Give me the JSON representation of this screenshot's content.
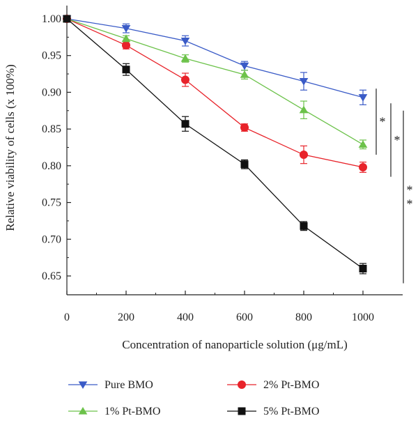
{
  "chart_data": {
    "type": "line",
    "xlabel": "Concentration of nanoparticle solution (μg/mL)",
    "ylabel": "Relative viability of cells (x 100%)",
    "x": [
      0,
      200,
      400,
      600,
      800,
      1000
    ],
    "xlim": [
      0,
      1000
    ],
    "ylim": [
      0.625,
      1.0
    ],
    "xticks": [
      "0",
      "200",
      "400",
      "600",
      "800",
      "1000"
    ],
    "yticks": [
      "0.65",
      "0.70",
      "0.75",
      "0.80",
      "0.85",
      "0.90",
      "0.95",
      "1.00"
    ],
    "grid": false,
    "legend_position": "bottom",
    "series": [
      {
        "name": "Pure BMO",
        "color": "#3a5bc7",
        "marker": "triangle-down",
        "values": [
          1.0,
          0.987,
          0.97,
          0.936,
          0.915,
          0.893
        ],
        "errors": [
          0.002,
          0.006,
          0.007,
          0.006,
          0.012,
          0.01
        ]
      },
      {
        "name": "2% Pt-BMO",
        "color": "#e8232a",
        "marker": "circle",
        "values": [
          1.0,
          0.964,
          0.917,
          0.852,
          0.815,
          0.798
        ],
        "errors": [
          0.002,
          0.005,
          0.009,
          0.005,
          0.012,
          0.007
        ]
      },
      {
        "name": "1% Pt-BMO",
        "color": "#6cc24a",
        "marker": "triangle-up",
        "values": [
          1.0,
          0.973,
          0.946,
          0.924,
          0.876,
          0.829
        ],
        "errors": [
          0.002,
          0.004,
          0.005,
          0.006,
          0.012,
          0.006
        ]
      },
      {
        "name": "5% Pt-BMO",
        "color": "#111111",
        "marker": "square",
        "values": [
          1.0,
          0.931,
          0.857,
          0.802,
          0.718,
          0.66
        ],
        "errors": [
          0.002,
          0.008,
          0.01,
          0.006,
          0.006,
          0.007
        ]
      }
    ],
    "significance": [
      {
        "label": "*",
        "y_top": 0.905,
        "y_bottom": 0.815
      },
      {
        "label": "*",
        "y_top": 0.885,
        "y_bottom": 0.785
      },
      {
        "label": "* *",
        "y_top": 0.875,
        "y_bottom": 0.64
      }
    ]
  }
}
